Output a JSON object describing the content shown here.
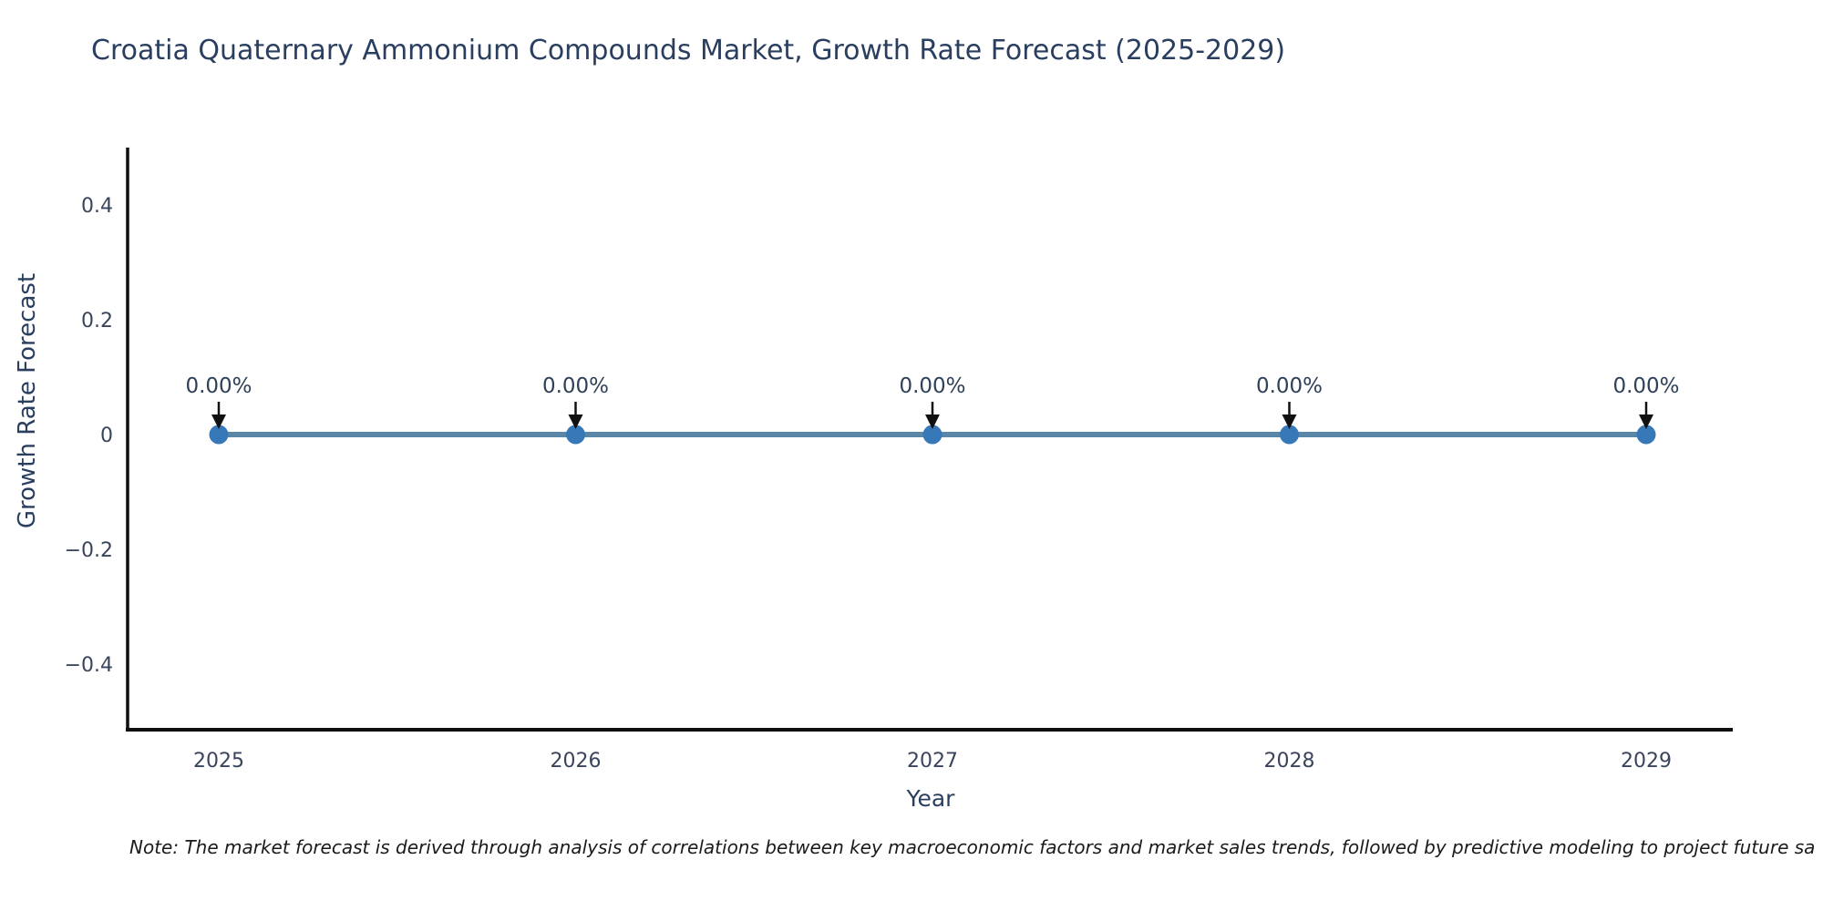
{
  "title": "Croatia Quaternary Ammonium Compounds Market, Growth Rate Forecast (2025-2029)",
  "note": "Note: The market forecast is derived through analysis of correlations between key macroeconomic factors and market sales trends, followed by predictive modeling to project future sa",
  "chart_data": {
    "type": "line",
    "title": "Croatia Quaternary Ammonium Compounds Market, Growth Rate Forecast (2025-2029)",
    "xlabel": "Year",
    "ylabel": "Growth Rate Forecast",
    "x": [
      "2025",
      "2026",
      "2027",
      "2028",
      "2029"
    ],
    "series": [
      {
        "name": "Growth Rate Forecast",
        "values": [
          0,
          0,
          0,
          0,
          0
        ],
        "point_labels": [
          "0.00%",
          "0.00%",
          "0.00%",
          "0.00%",
          "0.00%"
        ]
      }
    ],
    "ylim": [
      -0.5,
      0.5
    ],
    "yticks": {
      "values": [
        0.4,
        0.2,
        0,
        -0.2,
        -0.4
      ],
      "labels": [
        "0.4",
        "0.2",
        "0",
        "−0.2",
        "−0.4"
      ]
    },
    "grid": false,
    "legend_position": "none",
    "annotation_style": "down-arrow",
    "colors": {
      "line": "#5a87a8",
      "marker": "#3778b9",
      "spine": "#0f0f0f",
      "arrow": "#111111",
      "annotation_text": "#2f4159",
      "title_text": "#2a3f5f",
      "tick_text": "#3a455c",
      "note_text": "#1a1a1a"
    }
  }
}
